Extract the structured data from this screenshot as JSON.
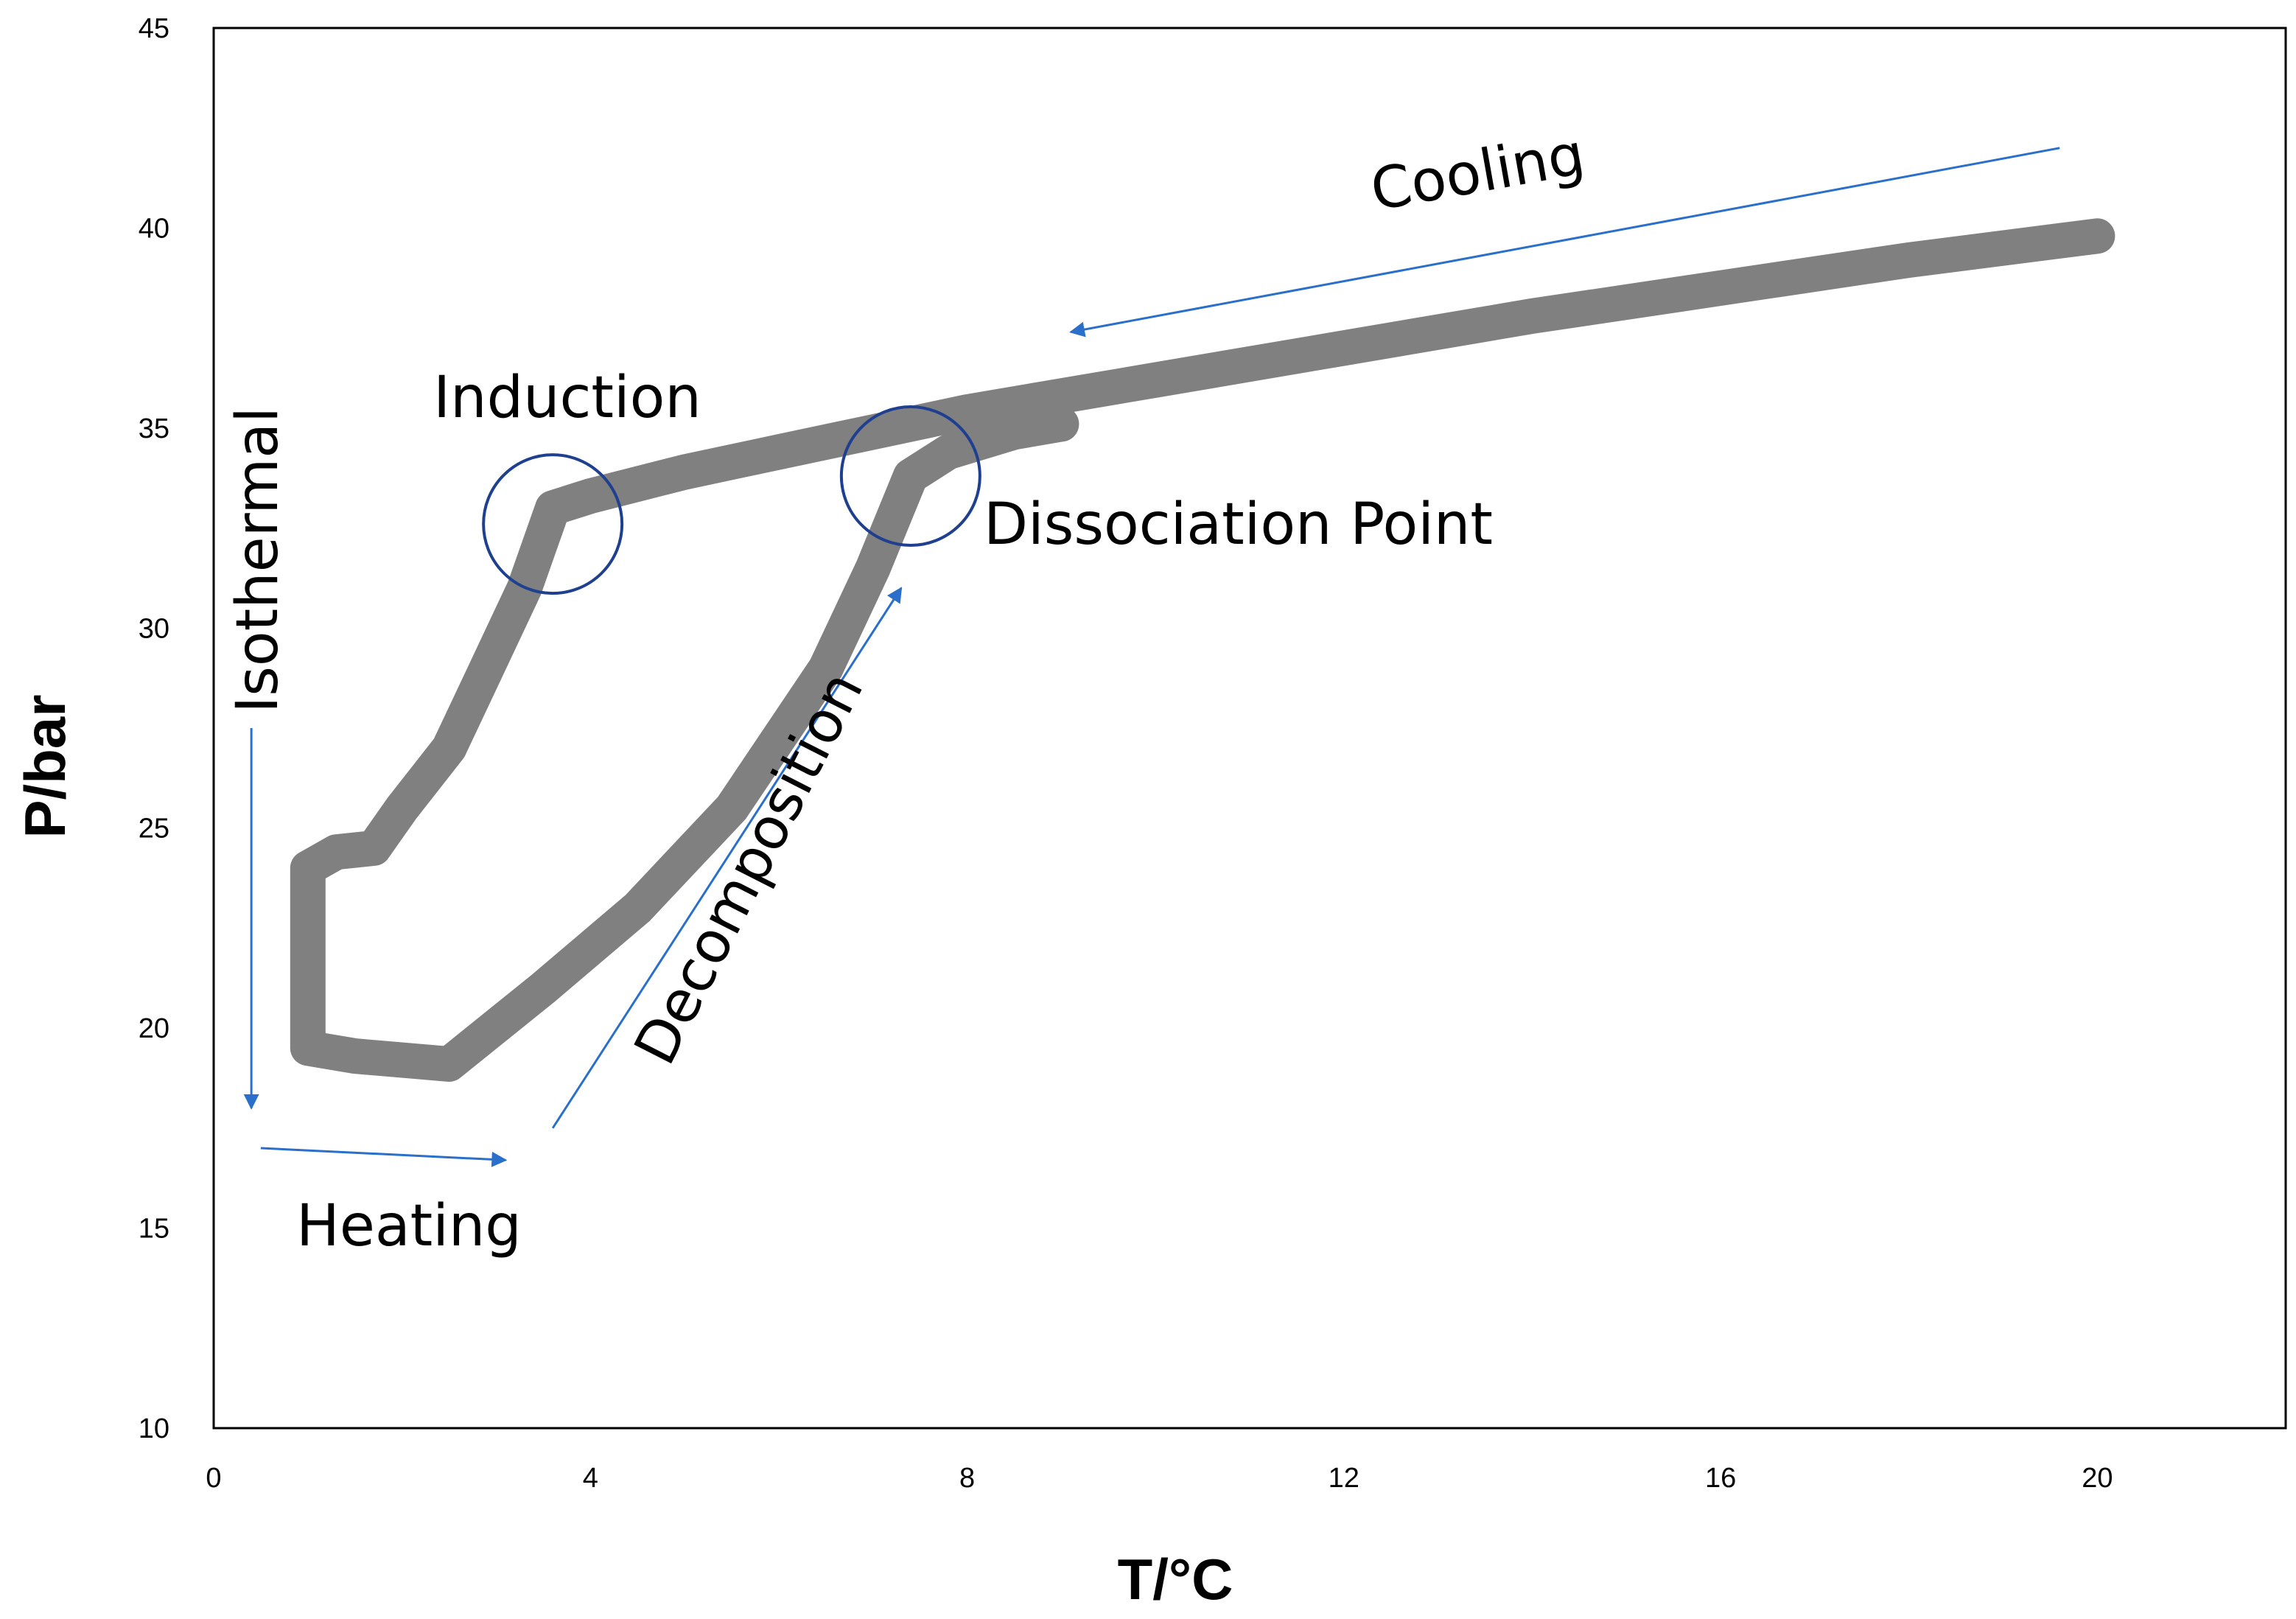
{
  "chart_data": {
    "type": "line",
    "title": "",
    "xlabel": "T/°C",
    "ylabel": "P/bar",
    "xlim": [
      0,
      22
    ],
    "ylim": [
      10,
      45
    ],
    "x_ticks": [
      0,
      4,
      8,
      12,
      16,
      20
    ],
    "y_ticks": [
      10,
      15,
      20,
      25,
      30,
      35,
      40,
      45
    ],
    "grid": false,
    "legend": "none",
    "series": [
      {
        "color": "#808080",
        "points": [
          [
            20.0,
            39.8
          ],
          [
            18.0,
            39.2
          ],
          [
            16.0,
            38.5
          ],
          [
            14.0,
            37.8
          ],
          [
            12.0,
            37.0
          ],
          [
            10.0,
            36.2
          ],
          [
            8.0,
            35.4
          ],
          [
            7.0,
            34.9
          ],
          [
            6.0,
            34.4
          ],
          [
            5.0,
            33.9
          ],
          [
            4.0,
            33.3
          ],
          [
            3.6,
            33.0
          ],
          [
            3.3,
            31.0
          ],
          [
            2.9,
            29.0
          ],
          [
            2.5,
            27.0
          ],
          [
            2.0,
            25.5
          ],
          [
            1.7,
            24.5
          ],
          [
            1.3,
            24.4
          ],
          [
            1.0,
            24.0
          ],
          [
            1.0,
            22.0
          ],
          [
            1.0,
            20.0
          ],
          [
            1.0,
            19.5
          ],
          [
            1.5,
            19.3
          ],
          [
            2.5,
            19.1
          ],
          [
            3.5,
            21.0
          ],
          [
            4.5,
            23.0
          ],
          [
            5.5,
            25.5
          ],
          [
            6.5,
            29.0
          ],
          [
            7.0,
            31.5
          ],
          [
            7.4,
            33.8
          ],
          [
            7.8,
            34.4
          ],
          [
            8.5,
            34.9
          ],
          [
            9.0,
            35.1
          ]
        ]
      }
    ],
    "annotations": {
      "cooling": "Cooling",
      "induction": "Induction",
      "dissociation": "Dissociation Point",
      "isothermal": "Isothermal",
      "decomposition": "Decomposition",
      "heating": "Heating"
    },
    "arrows": [
      {
        "name": "cooling-arrow",
        "from": [
          19.6,
          42.0
        ],
        "to": [
          9.1,
          37.4
        ]
      },
      {
        "name": "isothermal-arrow",
        "from": [
          0.4,
          27.5
        ],
        "to": [
          0.4,
          18.0
        ]
      },
      {
        "name": "heating-arrow",
        "from": [
          0.5,
          17.0
        ],
        "to": [
          3.1,
          16.7
        ]
      },
      {
        "name": "decomposition-arrow",
        "from": [
          3.6,
          17.5
        ],
        "to": [
          7.3,
          31.0
        ]
      }
    ],
    "circles": [
      {
        "name": "induction-circle",
        "cx": 3.6,
        "cy": 32.6
      },
      {
        "name": "dissociation-circle",
        "cx": 7.4,
        "cy": 33.8
      }
    ],
    "accent_color": "#2a6fc9",
    "circle_color": "#1f3f8f"
  }
}
